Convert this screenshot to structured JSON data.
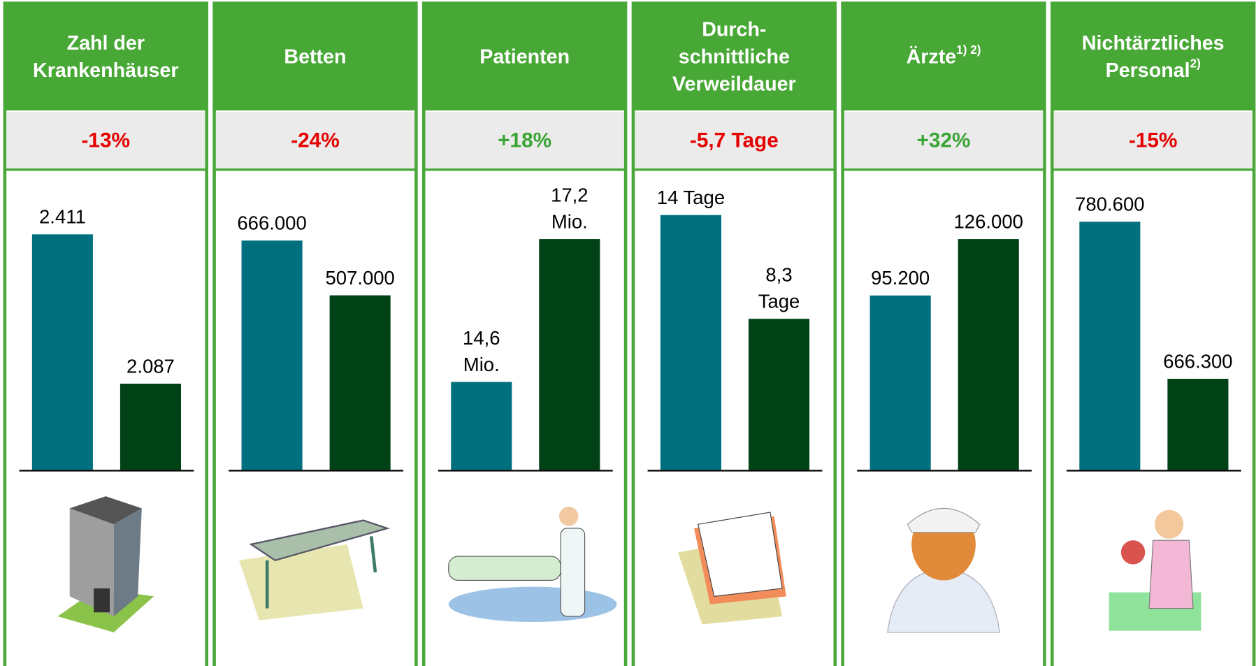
{
  "panels": [
    {
      "title_lines": [
        "Zahl der",
        "Krankenhäuser"
      ],
      "change": "-13%",
      "change_color": "#e60000",
      "values": [
        2411,
        2087
      ],
      "value_labels": [
        [
          "2.411"
        ],
        [
          "2.087"
        ]
      ],
      "ylim": [
        1900,
        2520
      ],
      "icon": "hospital"
    },
    {
      "title_lines": [
        "Betten"
      ],
      "change": "-24%",
      "change_color": "#e60000",
      "values": [
        666000,
        507000
      ],
      "value_labels": [
        [
          "666.000"
        ],
        [
          "507.000"
        ]
      ],
      "ylim": [
        0,
        830000
      ],
      "icon": "bed"
    },
    {
      "title_lines": [
        "Patienten"
      ],
      "change": "+18%",
      "change_color": "#3aa535",
      "values": [
        14.6,
        17.2
      ],
      "value_labels": [
        [
          "14,6",
          "Mio."
        ],
        [
          "17,2",
          "Mio."
        ]
      ],
      "ylim": [
        13,
        18.2
      ],
      "icon": "patient"
    },
    {
      "title_lines": [
        "Durch-",
        "schnittliche",
        "Verweildauer"
      ],
      "change": "-5,7 Tage",
      "change_color": "#e60000",
      "values": [
        14,
        8.3
      ],
      "value_labels": [
        [
          "14 Tage"
        ],
        [
          "8,3",
          "Tage"
        ]
      ],
      "ylim": [
        0,
        15.7
      ],
      "icon": "calendar"
    },
    {
      "title_lines": [
        "Ärzte"
      ],
      "title_note": "1) 2)",
      "change": "+32%",
      "change_color": "#3aa535",
      "values": [
        95200,
        126000
      ],
      "value_labels": [
        [
          "95.200"
        ],
        [
          "126.000"
        ]
      ],
      "ylim": [
        0,
        156000
      ],
      "icon": "doctor"
    },
    {
      "title_lines": [
        "Nichtärztliches",
        "Personal"
      ],
      "title_note": "2)",
      "change": "-15%",
      "change_color": "#e60000",
      "values": [
        780600,
        666300
      ],
      "value_labels": [
        [
          "780.600"
        ],
        [
          "666.300"
        ]
      ],
      "ylim": [
        600000,
        808000
      ],
      "icon": "nurse"
    }
  ],
  "bar_colors": [
    "#00707f",
    "#004216"
  ]
}
